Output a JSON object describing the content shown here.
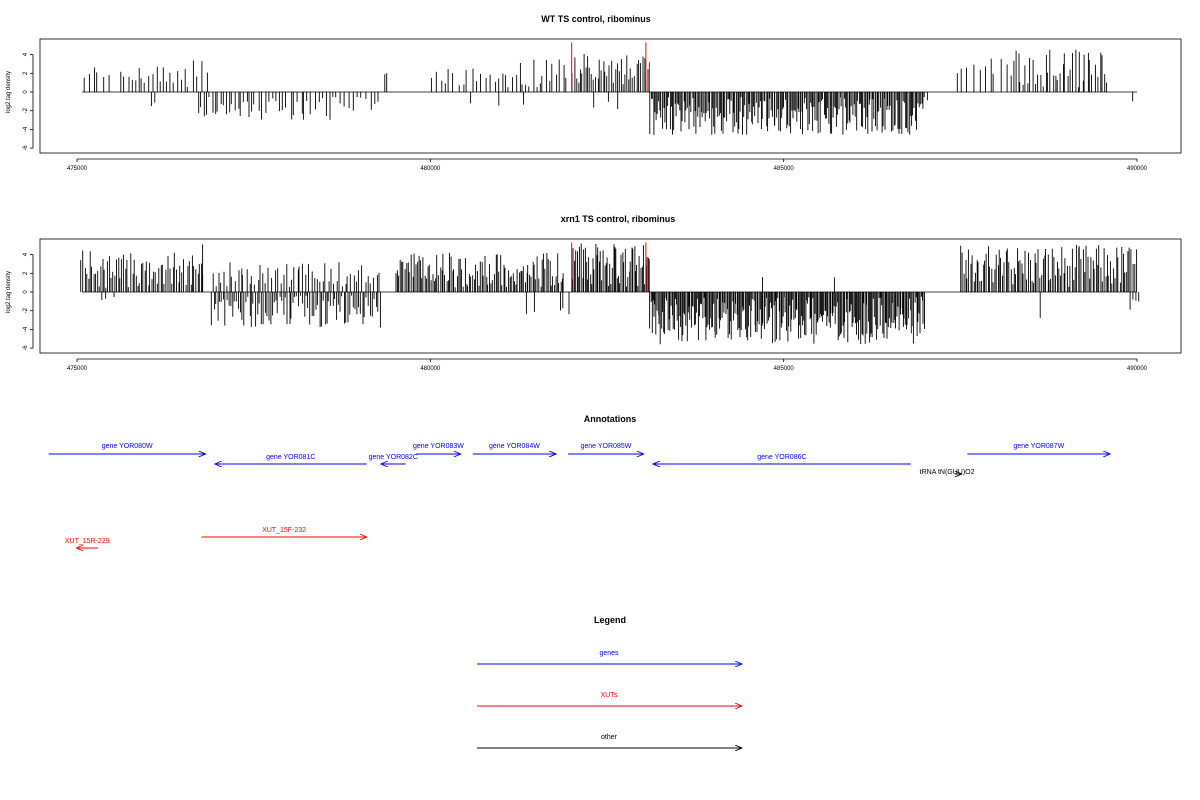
{
  "chart_data": [
    {
      "type": "bar",
      "title": "WT TS control, ribominus",
      "xlabel": "",
      "ylabel": "log2 tag density",
      "xlim": [
        475000,
        490000
      ],
      "ylim": [
        -6,
        5.5
      ],
      "xticks": [
        475000,
        480000,
        485000,
        490000
      ],
      "yticks": [
        -6,
        -4,
        -2,
        0,
        2,
        4
      ],
      "baseline_range": [
        475000,
        490000
      ],
      "highlight_color": "#ff0000",
      "highlights": [
        {
          "x": 482000,
          "y": 5.3
        },
        {
          "x": 483050,
          "y": 5.3
        },
        {
          "x": 483100,
          "y": 3.2
        }
      ],
      "segments": [
        {
          "from": 475050,
          "to": 475500,
          "count": 6,
          "min": 1.0,
          "max": 3.2
        },
        {
          "from": 475600,
          "to": 476600,
          "count": 20,
          "min": 0.5,
          "max": 2.8
        },
        {
          "from": 476000,
          "to": 476200,
          "count": 2,
          "min": -1.5,
          "max": -1.0
        },
        {
          "from": 476700,
          "to": 477500,
          "count": 20,
          "min": -2.8,
          "max": -0.5
        },
        {
          "from": 476600,
          "to": 476900,
          "count": 4,
          "min": 1.5,
          "max": 3.8
        },
        {
          "from": 477500,
          "to": 478600,
          "count": 22,
          "min": -3.0,
          "max": -0.5
        },
        {
          "from": 478600,
          "to": 479300,
          "count": 12,
          "min": -2.5,
          "max": -0.5
        },
        {
          "from": 479300,
          "to": 479450,
          "count": 2,
          "min": 1.5,
          "max": 2.2
        },
        {
          "from": 480000,
          "to": 481000,
          "count": 16,
          "min": 0.5,
          "max": 2.5
        },
        {
          "from": 480500,
          "to": 481400,
          "count": 3,
          "min": -1.5,
          "max": -1.0
        },
        {
          "from": 481000,
          "to": 481950,
          "count": 20,
          "min": 0.5,
          "max": 3.5
        },
        {
          "from": 482000,
          "to": 483100,
          "count": 40,
          "min": 0.8,
          "max": 4.2
        },
        {
          "from": 482300,
          "to": 482700,
          "count": 3,
          "min": -2.0,
          "max": -1.0
        },
        {
          "from": 483100,
          "to": 487000,
          "count": 220,
          "min": -4.6,
          "max": -0.5
        },
        {
          "from": 487000,
          "to": 487050,
          "count": 1,
          "min": -1.0,
          "max": -0.8
        },
        {
          "from": 487400,
          "to": 488200,
          "count": 10,
          "min": 1.0,
          "max": 3.8
        },
        {
          "from": 488200,
          "to": 489600,
          "count": 40,
          "min": 0.5,
          "max": 4.6
        },
        {
          "from": 489850,
          "to": 490000,
          "count": 1,
          "min": -1.0,
          "max": -0.9
        }
      ]
    },
    {
      "type": "bar",
      "title": "xrn1 TS control, ribominus",
      "xlabel": "",
      "ylabel": "log2 tag density",
      "xlim": [
        475000,
        490000
      ],
      "ylim": [
        -6,
        5.5
      ],
      "xticks": [
        475000,
        480000,
        485000,
        490000
      ],
      "yticks": [
        -6,
        -4,
        -2,
        0,
        2,
        4
      ],
      "baseline_range": [
        475000,
        490000
      ],
      "highlight_color": "#ff0000",
      "highlights": [
        {
          "x": 482000,
          "y": 5.3
        },
        {
          "x": 483050,
          "y": 5.3
        },
        {
          "x": 483100,
          "y": 3.5
        }
      ],
      "segments": [
        {
          "from": 475050,
          "to": 476800,
          "count": 70,
          "min": 0.3,
          "max": 4.5
        },
        {
          "from": 475300,
          "to": 475600,
          "count": 3,
          "min": -1.0,
          "max": -0.5
        },
        {
          "from": 476700,
          "to": 476800,
          "count": 1,
          "min": 5.0,
          "max": 5.1
        },
        {
          "from": 476900,
          "to": 479300,
          "count": 90,
          "min": -3.8,
          "max": -0.3
        },
        {
          "from": 476900,
          "to": 479300,
          "count": 60,
          "min": 0.5,
          "max": 3.2
        },
        {
          "from": 479500,
          "to": 481900,
          "count": 110,
          "min": 0.5,
          "max": 4.2
        },
        {
          "from": 481300,
          "to": 481500,
          "count": 2,
          "min": -2.8,
          "max": -1.5
        },
        {
          "from": 482000,
          "to": 483100,
          "count": 60,
          "min": 0.5,
          "max": 5.2
        },
        {
          "from": 481800,
          "to": 482000,
          "count": 3,
          "min": -2.5,
          "max": -1.5
        },
        {
          "from": 483100,
          "to": 487000,
          "count": 260,
          "min": -5.6,
          "max": -0.5
        },
        {
          "from": 484700,
          "to": 484800,
          "count": 1,
          "min": 1.5,
          "max": 1.6
        },
        {
          "from": 485700,
          "to": 485800,
          "count": 1,
          "min": 1.5,
          "max": 1.6
        },
        {
          "from": 487500,
          "to": 490000,
          "count": 110,
          "min": 0.5,
          "max": 5.1
        },
        {
          "from": 488600,
          "to": 488700,
          "count": 1,
          "min": -2.8,
          "max": -2.7
        },
        {
          "from": 489900,
          "to": 490050,
          "count": 4,
          "min": -2.0,
          "max": -0.5
        }
      ]
    }
  ],
  "annotations": {
    "title": "Annotations",
    "genes_color": "#0000ff",
    "xuts_color": "#ff0000",
    "other_color": "#000000",
    "items": [
      {
        "label": "gene YOR080W",
        "category": "gene",
        "from": 474600,
        "to": 476820,
        "row": 0
      },
      {
        "label": "gene YOR081C",
        "category": "gene",
        "from": 479100,
        "to": 476950,
        "row": 1
      },
      {
        "label": "gene YOR082C",
        "category": "gene",
        "from": 479650,
        "to": 479300,
        "row": 1
      },
      {
        "label": "gene YOR083W",
        "category": "gene",
        "from": 479800,
        "to": 480430,
        "row": 0
      },
      {
        "label": "gene YOR084W",
        "category": "gene",
        "from": 480600,
        "to": 481780,
        "row": 0
      },
      {
        "label": "gene YOR085W",
        "category": "gene",
        "from": 481950,
        "to": 483020,
        "row": 0
      },
      {
        "label": "gene YOR086C",
        "category": "gene",
        "from": 486800,
        "to": 483150,
        "row": 1
      },
      {
        "label": "tRNA tN(GUU)O2",
        "category": "other",
        "from": 487420,
        "to": 487520,
        "row": 2
      },
      {
        "label": "gene YOR087W",
        "category": "gene",
        "from": 487600,
        "to": 489620,
        "row": 0
      },
      {
        "label": "XUT_15R-229",
        "category": "xut",
        "from": 475300,
        "to": 474990,
        "row": 3
      },
      {
        "label": "XUT_15F-232",
        "category": "xut",
        "from": 476760,
        "to": 479100,
        "row": 4
      }
    ]
  },
  "legend": {
    "title": "Legend",
    "entries": [
      {
        "label": "genes",
        "color": "#0000ff"
      },
      {
        "label": "XUTs",
        "color": "#ff0000"
      },
      {
        "label": "other",
        "color": "#000000"
      }
    ]
  }
}
